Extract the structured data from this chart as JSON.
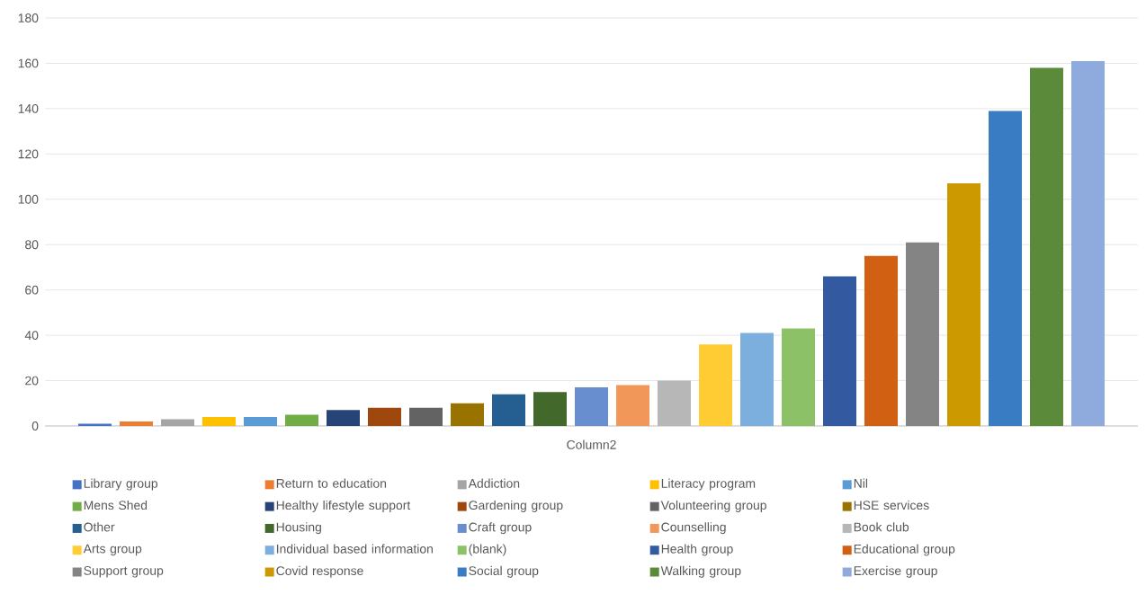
{
  "chart_data": {
    "type": "bar",
    "categories": [
      "Column2"
    ],
    "ylim": [
      0,
      180
    ],
    "yticks": [
      0,
      20,
      40,
      60,
      80,
      100,
      120,
      140,
      160,
      180
    ],
    "grid": "y",
    "legend": "bottom",
    "series": [
      {
        "name": "Library group",
        "color": "#4472c4",
        "values": [
          1
        ]
      },
      {
        "name": "Return to education",
        "color": "#ed7d31",
        "values": [
          2
        ]
      },
      {
        "name": "Addiction",
        "color": "#a5a5a5",
        "values": [
          3
        ]
      },
      {
        "name": "Literacy program",
        "color": "#ffc000",
        "values": [
          4
        ]
      },
      {
        "name": "Nil",
        "color": "#5b9bd5",
        "values": [
          4
        ]
      },
      {
        "name": "Mens Shed",
        "color": "#70ad47",
        "values": [
          5
        ]
      },
      {
        "name": "Healthy lifestyle support",
        "color": "#264478",
        "values": [
          7
        ]
      },
      {
        "name": "Gardening group",
        "color": "#9e480e",
        "values": [
          8
        ]
      },
      {
        "name": "Volunteering group",
        "color": "#636363",
        "values": [
          8
        ]
      },
      {
        "name": "HSE services",
        "color": "#997300",
        "values": [
          10
        ]
      },
      {
        "name": "Other",
        "color": "#255e91",
        "values": [
          14
        ]
      },
      {
        "name": "Housing",
        "color": "#43682b",
        "values": [
          15
        ]
      },
      {
        "name": "Craft group",
        "color": "#698ed0",
        "values": [
          17
        ]
      },
      {
        "name": "Counselling",
        "color": "#f1975a",
        "values": [
          18
        ]
      },
      {
        "name": "Book club",
        "color": "#b7b7b7",
        "values": [
          20
        ]
      },
      {
        "name": "Arts group",
        "color": "#ffcd33",
        "values": [
          36
        ]
      },
      {
        "name": "Individual based information",
        "color": "#7cafdd",
        "values": [
          41
        ]
      },
      {
        "name": "(blank)",
        "color": "#8cc168",
        "values": [
          43
        ]
      },
      {
        "name": "Health group",
        "color": "#335aa1",
        "values": [
          66
        ]
      },
      {
        "name": "Educational group",
        "color": "#d26012",
        "values": [
          75
        ]
      },
      {
        "name": "Support group",
        "color": "#848484",
        "values": [
          81
        ]
      },
      {
        "name": "Covid response",
        "color": "#cc9a00",
        "values": [
          107
        ]
      },
      {
        "name": "Social group",
        "color": "#3a7cc4",
        "values": [
          139
        ]
      },
      {
        "name": "Walking group",
        "color": "#5a8a3a",
        "values": [
          158
        ]
      },
      {
        "name": "Exercise group",
        "color": "#8faadc",
        "values": [
          161
        ]
      }
    ]
  }
}
